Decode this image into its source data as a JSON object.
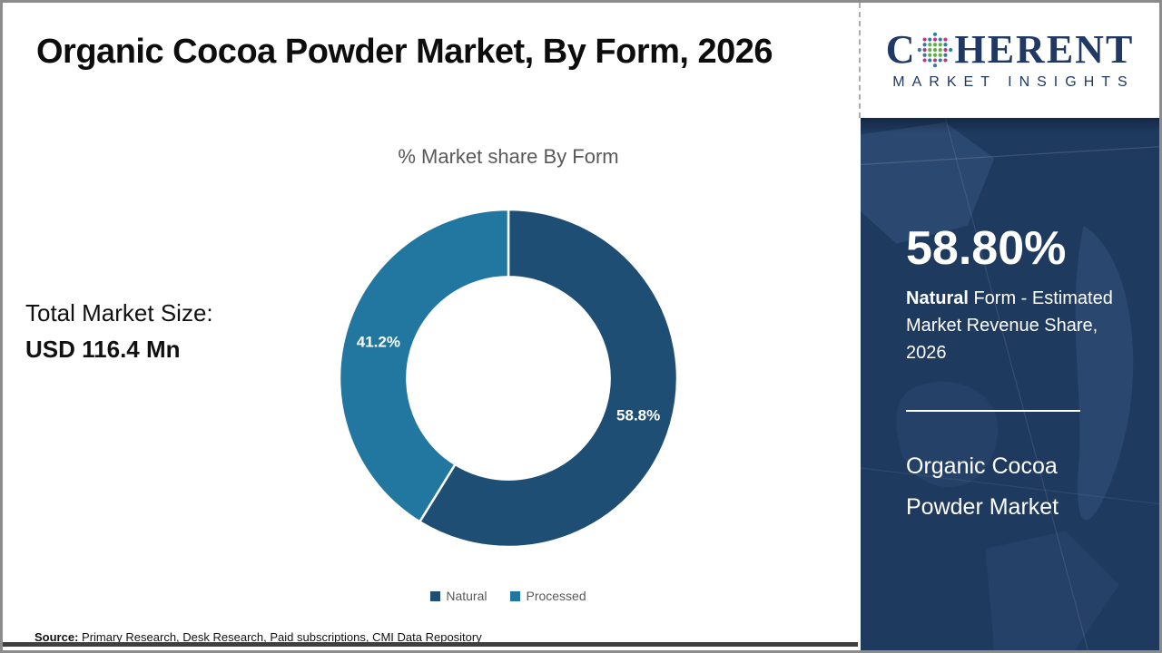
{
  "title": "Organic Cocoa Powder Market, By Form, 2026",
  "left_panel": {
    "total_market_size_label": "Total Market Size:",
    "total_market_size_value": "USD 116.4 Mn"
  },
  "chart_data": {
    "type": "pie",
    "subtype": "donut",
    "title": "% Market share By Form",
    "categories": [
      "Natural",
      "Processed"
    ],
    "values": [
      58.8,
      41.2
    ],
    "data_labels": [
      "58.8%",
      "41.2%"
    ],
    "colors": [
      "#1f4e74",
      "#2177a0"
    ],
    "start_angle_deg": -90,
    "direction": "clockwise",
    "legend_position": "bottom",
    "inner_radius_ratio": 0.6
  },
  "source": {
    "label": "Source:",
    "text": " Primary Research, Desk Research, Paid subscriptions, CMI Data Repository"
  },
  "logo": {
    "word_start": "C",
    "word_end": "HERENT",
    "subtitle": "MARKET INSIGHTS",
    "text_color": "#1f3864",
    "globe_inner_color": "#5cb247",
    "globe_alt_color_1": "#c03486",
    "globe_alt_color_2": "#2e7ca0"
  },
  "right_panel": {
    "background_color": "#1e3a5f",
    "stat_value": "58.80%",
    "stat_desc_bold": "Natural",
    "stat_desc_rest": " Form - Estimated Market Revenue Share, 2026",
    "market_name": "Organic Cocoa Powder Market"
  }
}
